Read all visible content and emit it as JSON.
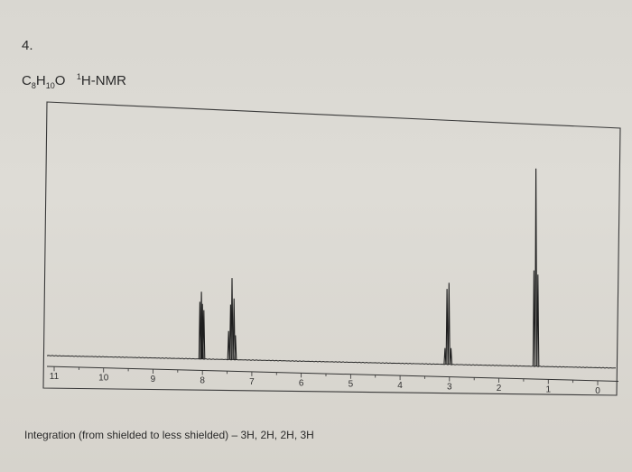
{
  "question_number": "4.",
  "header": {
    "formula_c": "C",
    "formula_c_sub": "8",
    "formula_h": "H",
    "formula_h_sub": "10",
    "formula_o": "O",
    "nmr_sup": "1",
    "nmr_label": "H-NMR"
  },
  "caption": "Integration (from shielded to less shielded) – 3H, 2H, 2H, 3H",
  "chart_data": {
    "type": "line",
    "title": "",
    "xlabel": "",
    "ylabel": "",
    "x_reversed": true,
    "xlim": [
      11,
      0
    ],
    "x_ticks": [
      "11",
      "10",
      "9",
      "8",
      "7",
      "6",
      "5",
      "4",
      "3",
      "2",
      "1",
      "0"
    ],
    "ylim": [
      0,
      1
    ],
    "peaks": [
      {
        "group": "aromatic-a",
        "ppm": [
          8.05,
          8.02,
          8.0,
          7.97
        ],
        "heights": [
          0.28,
          0.33,
          0.27,
          0.24
        ]
      },
      {
        "group": "aromatic-b",
        "ppm": [
          7.47,
          7.43,
          7.4,
          7.36,
          7.33
        ],
        "heights": [
          0.14,
          0.27,
          0.4,
          0.3,
          0.12
        ]
      },
      {
        "group": "quartet",
        "ppm": [
          3.09,
          3.05,
          3.01,
          2.97
        ],
        "heights": [
          0.08,
          0.37,
          0.4,
          0.08
        ]
      },
      {
        "group": "triplet",
        "ppm": [
          1.29,
          1.25,
          1.21
        ],
        "heights": [
          0.47,
          0.97,
          0.45
        ]
      }
    ]
  }
}
